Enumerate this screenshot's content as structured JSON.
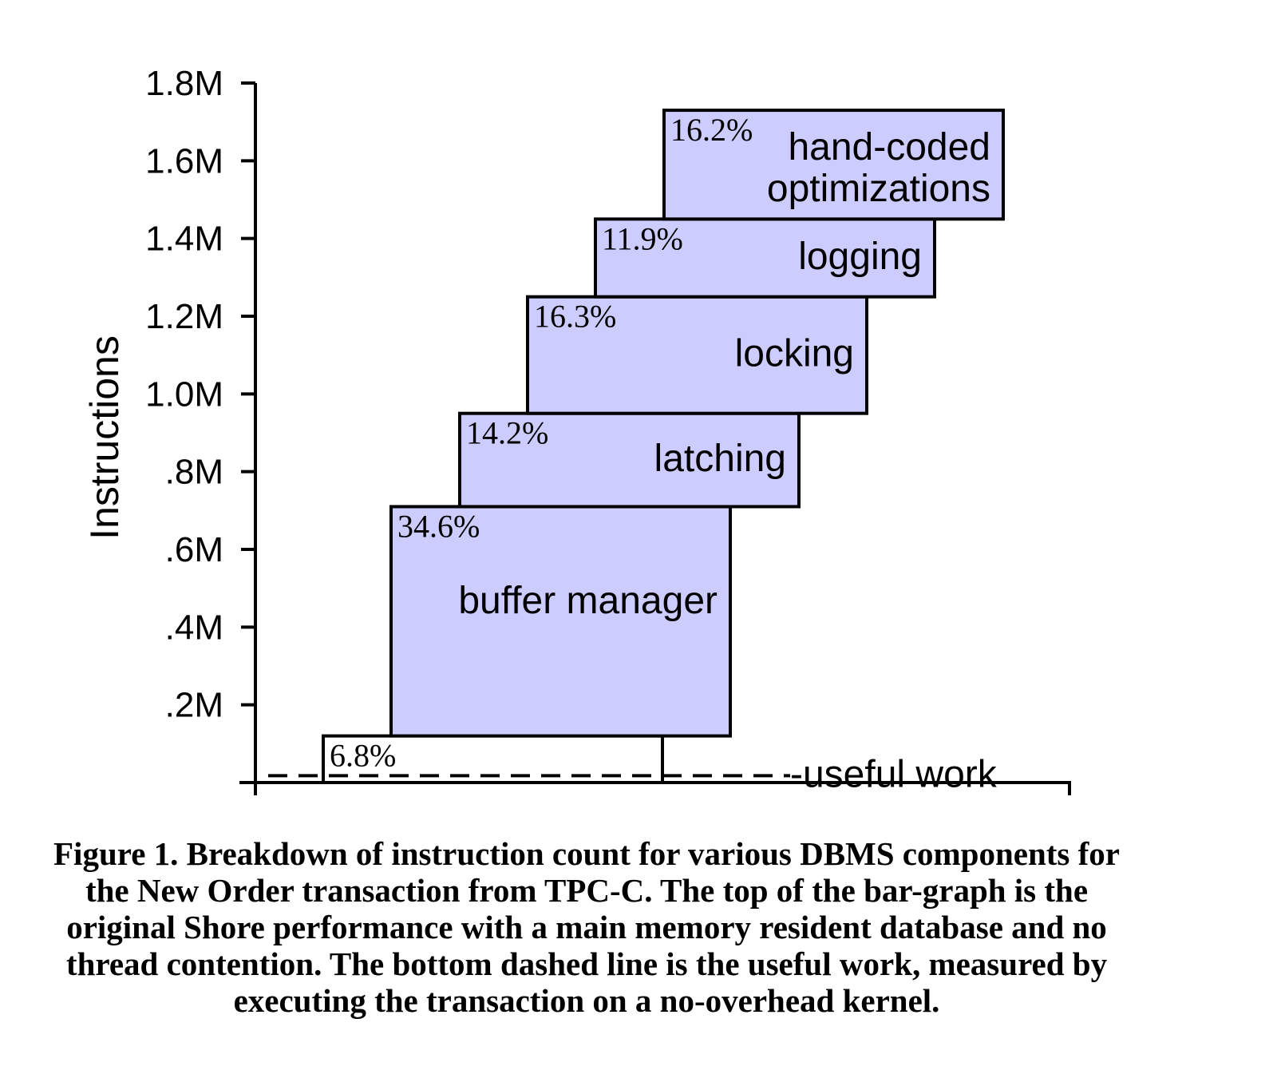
{
  "chart_data": {
    "type": "bar",
    "subtype": "waterfall",
    "ylabel": "Instructions",
    "ylim": [
      0,
      1.8
    ],
    "y_unit": "M instructions",
    "y_ticks": [
      {
        "value": 0.2,
        "label": ".2M"
      },
      {
        "value": 0.4,
        "label": ".4M"
      },
      {
        "value": 0.6,
        "label": ".6M"
      },
      {
        "value": 0.8,
        "label": ".8M"
      },
      {
        "value": 1.0,
        "label": "1.0M"
      },
      {
        "value": 1.2,
        "label": "1.2M"
      },
      {
        "value": 1.4,
        "label": "1.4M"
      },
      {
        "value": 1.6,
        "label": "1.6M"
      },
      {
        "value": 1.8,
        "label": "1.8M"
      }
    ],
    "useful_work": {
      "label": "-useful work",
      "value": 0.03
    },
    "segments": [
      {
        "name": "",
        "percent": "6.8%",
        "bottom": 0.0,
        "top": 0.12,
        "filled": false
      },
      {
        "name": "buffer manager",
        "lines": [
          "buffer manager"
        ],
        "percent": "34.6%",
        "bottom": 0.12,
        "top": 0.71,
        "filled": true
      },
      {
        "name": "latching",
        "lines": [
          "latching"
        ],
        "percent": "14.2%",
        "bottom": 0.71,
        "top": 0.95,
        "filled": true
      },
      {
        "name": "locking",
        "lines": [
          "locking"
        ],
        "percent": "16.3%",
        "bottom": 0.95,
        "top": 1.25,
        "filled": true
      },
      {
        "name": "logging",
        "lines": [
          "logging"
        ],
        "percent": "11.9%",
        "bottom": 1.25,
        "top": 1.45,
        "filled": true
      },
      {
        "name": "hand-coded optimizations",
        "lines": [
          "hand-coded",
          "optimizations"
        ],
        "percent": "16.2%",
        "bottom": 1.45,
        "top": 1.73,
        "filled": true
      }
    ],
    "colors": {
      "fill": "#ccccff",
      "stroke": "#000000"
    }
  },
  "caption": "Figure 1.  Breakdown of instruction count for various DBMS components for the New Order transaction from TPC-C. The top of the bar-graph is the original Shore performance with a main memory resident database and no thread contention. The bottom dashed line is the useful work, measured by executing the transaction on a no-overhead kernel."
}
